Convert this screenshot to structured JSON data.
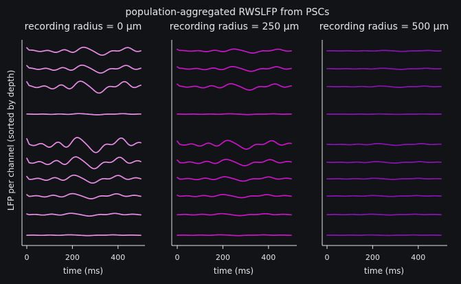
{
  "figure_title": "population-aggregated RWSLFP from PSCs",
  "chart_data": [
    {
      "type": "line",
      "title": "recording radius = 0 µm",
      "xlabel": "time (ms)",
      "ylabel": "LFP per channel (sorted by depth)",
      "x_range": [
        0,
        500
      ],
      "x_ticks": [
        0,
        200,
        400
      ],
      "color": "#e88de6",
      "grid": false,
      "channels": 10,
      "series": [
        {
          "amplitude": 1.0
        },
        {
          "amplitude": 1.0
        },
        {
          "amplitude": 1.5
        },
        {
          "amplitude": 0.15
        },
        {
          "amplitude": 1.9
        },
        {
          "amplitude": 1.5
        },
        {
          "amplitude": 1.0
        },
        {
          "amplitude": 0.65
        },
        {
          "amplitude": 0.35
        },
        {
          "amplitude": 0.1
        }
      ]
    },
    {
      "type": "line",
      "title": "recording radius = 250 µm",
      "xlabel": "time (ms)",
      "ylabel": "",
      "x_range": [
        0,
        500
      ],
      "x_ticks": [
        0,
        200,
        400
      ],
      "color": "#c815c8",
      "grid": false,
      "channels": 10,
      "series": [
        {
          "amplitude": 0.5
        },
        {
          "amplitude": 0.6
        },
        {
          "amplitude": 0.8
        },
        {
          "amplitude": 0.1
        },
        {
          "amplitude": 1.1
        },
        {
          "amplitude": 0.8
        },
        {
          "amplitude": 0.55
        },
        {
          "amplitude": 0.4
        },
        {
          "amplitude": 0.25
        },
        {
          "amplitude": 0.1
        }
      ]
    },
    {
      "type": "line",
      "title": "recording radius = 500 µm",
      "xlabel": "time (ms)",
      "ylabel": "",
      "x_range": [
        0,
        500
      ],
      "x_ticks": [
        0,
        200,
        400
      ],
      "color": "#8a12b5",
      "grid": false,
      "channels": 10,
      "series": [
        {
          "amplitude": 0.12
        },
        {
          "amplitude": 0.14
        },
        {
          "amplitude": 0.16
        },
        {
          "amplitude": 0.05
        },
        {
          "amplitude": 0.22
        },
        {
          "amplitude": 0.18
        },
        {
          "amplitude": 0.14
        },
        {
          "amplitude": 0.12
        },
        {
          "amplitude": 0.1
        },
        {
          "amplitude": 0.06
        }
      ]
    }
  ]
}
